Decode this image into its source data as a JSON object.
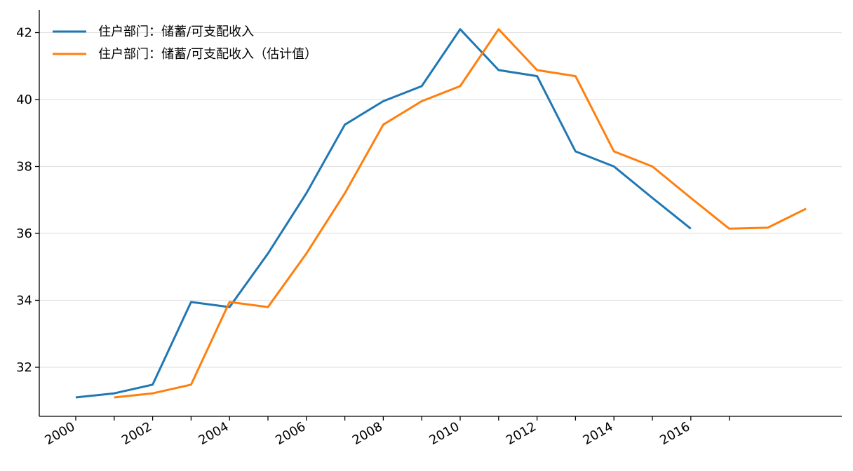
{
  "chart_data": {
    "type": "line",
    "title": "",
    "xlabel": "",
    "ylabel": "",
    "x_ticks": [
      "2000",
      "2002",
      "2004",
      "2006",
      "2008",
      "2010",
      "2012",
      "2014",
      "2016"
    ],
    "y_ticks": [
      32,
      34,
      36,
      38,
      40,
      42
    ],
    "xlim": [
      2000,
      2019
    ],
    "ylim": [
      30.6,
      42.7
    ],
    "grid": "horizontal",
    "legend_position": "top-left",
    "series": [
      {
        "name": "住户部门：储蓄/可支配收入",
        "color": "#1f77b4",
        "x": [
          2000,
          2001,
          2002,
          2003,
          2004,
          2005,
          2006,
          2007,
          2008,
          2009,
          2010,
          2011,
          2012,
          2013,
          2014,
          2015,
          2016
        ],
        "y": [
          31.1,
          31.22,
          31.48,
          33.95,
          33.8,
          35.4,
          37.2,
          39.25,
          39.95,
          40.4,
          42.1,
          40.88,
          40.7,
          38.45,
          38.0,
          37.06,
          36.14
        ]
      },
      {
        "name": "住户部门：储蓄/可支配收入（估计值）",
        "color": "#ff7f0e",
        "x": [
          2001,
          2002,
          2003,
          2004,
          2005,
          2006,
          2007,
          2008,
          2009,
          2010,
          2011,
          2012,
          2013,
          2014,
          2015,
          2016,
          2017,
          2018,
          2019
        ],
        "y": [
          31.1,
          31.22,
          31.48,
          33.95,
          33.8,
          35.4,
          37.2,
          39.25,
          39.95,
          40.4,
          42.1,
          40.88,
          40.7,
          38.45,
          38.0,
          37.06,
          36.14,
          36.17,
          36.74
        ]
      }
    ]
  }
}
